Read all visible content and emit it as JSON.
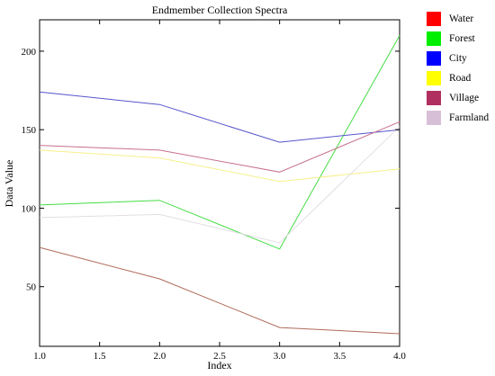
{
  "chart_data": {
    "type": "line",
    "title": "Endmember Collection Spectra",
    "xlabel": "Index",
    "ylabel": "Data Value",
    "xlim": [
      1.0,
      4.0
    ],
    "ylim": [
      12,
      220
    ],
    "x": [
      1.0,
      2.0,
      3.0,
      4.0
    ],
    "x_ticks": [
      "1.0",
      "1.5",
      "2.0",
      "2.5",
      "3.0",
      "3.5",
      "4.0"
    ],
    "x_tick_values": [
      1.0,
      1.5,
      2.0,
      2.5,
      3.0,
      3.5,
      4.0
    ],
    "y_ticks": [
      "50",
      "100",
      "150",
      "200"
    ],
    "y_tick_values": [
      50,
      100,
      150,
      200
    ],
    "grid": false,
    "legend_position": "right",
    "series": [
      {
        "name": "Water",
        "legend_color": "#ff0000",
        "line_color": "#b06a5a",
        "values": [
          75,
          55,
          24,
          20
        ]
      },
      {
        "name": "Forest",
        "legend_color": "#00ee00",
        "line_color": "#44dd44",
        "values": [
          102,
          105,
          74,
          210
        ]
      },
      {
        "name": "City",
        "legend_color": "#0000ff",
        "line_color": "#5555cc",
        "values": [
          174,
          166,
          142,
          150
        ]
      },
      {
        "name": "Road",
        "legend_color": "#ffff00",
        "line_color": "#f5f08a",
        "values": [
          137,
          132,
          117,
          125
        ]
      },
      {
        "name": "Village",
        "legend_color": "#b03060",
        "line_color": "#c8708c",
        "values": [
          140,
          137,
          123,
          155
        ]
      },
      {
        "name": "Farmland",
        "legend_color": "#d8bfd8",
        "line_color": "#e4dde4",
        "values": [
          94,
          96,
          78,
          152
        ]
      }
    ]
  }
}
